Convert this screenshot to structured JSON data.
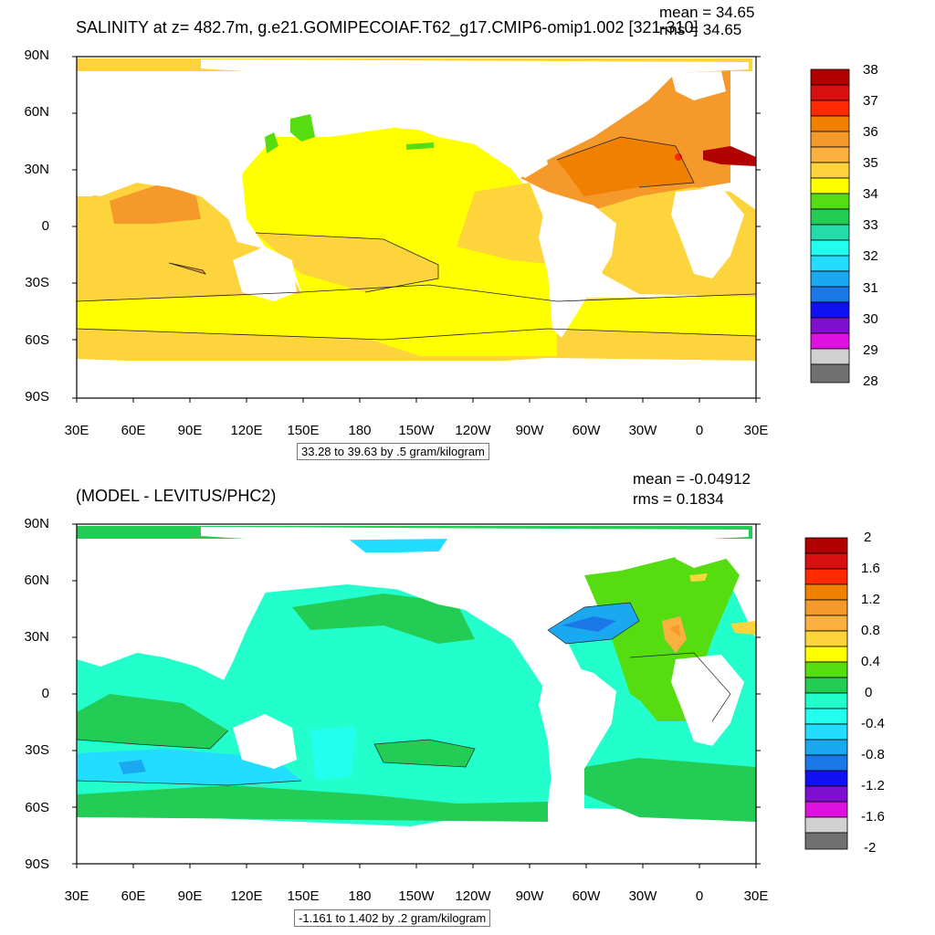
{
  "panels": [
    {
      "id": "top",
      "title": "SALINITY at z= 482.7m, g.e21.GOMIPECOIAF.T62_g17.CMIP6-omip1.002 [321-310]",
      "mean_text": "mean = 34.65",
      "rms_text": "rms = 34.65",
      "info_text": "33.28 to 39.63 by .5 gram/kilogram",
      "colorbar_labels": [
        "38",
        "37",
        "36",
        "35",
        "34",
        "33",
        "32",
        "31",
        "30",
        "29",
        "28"
      ],
      "colorbar_colors": [
        "#b00000",
        "#d81010",
        "#ff2a00",
        "#f08000",
        "#f59a2a",
        "#fbb040",
        "#fdd43c",
        "#ffff00",
        "#55dd11",
        "#22cc55",
        "#22ddaa",
        "#22ffee",
        "#22ddff",
        "#1aa8f0",
        "#1a78e8",
        "#1010f0",
        "#8010d0",
        "#e010e0",
        "#d0d0d0",
        "#707070"
      ],
      "ocean_colors": {
        "land": "#ffffff",
        "main": "#fdd43c",
        "pacific": "#ffff00",
        "atlantic": "#f59a2a",
        "hot": "#b00000"
      }
    },
    {
      "id": "bottom",
      "title": "(MODEL - LEVITUS/PHC2)",
      "mean_text": "mean = -0.04912",
      "rms_text": "rms = 0.1834",
      "info_text": "-1.161 to 1.402 by .2 gram/kilogram",
      "colorbar_labels": [
        "2",
        "1.6",
        "1.2",
        "0.8",
        "0.4",
        "0",
        "-0.4",
        "-0.8",
        "-1.2",
        "-1.6",
        "-2"
      ],
      "colorbar_colors": [
        "#b00000",
        "#d81010",
        "#ff2a00",
        "#f08000",
        "#f59a2a",
        "#fbb040",
        "#fdd43c",
        "#ffff00",
        "#55dd11",
        "#22cc55",
        "#22ffcc",
        "#22ffee",
        "#22ddff",
        "#1aa8f0",
        "#1a78e8",
        "#1010f0",
        "#8010d0",
        "#e010e0",
        "#d0d0d0",
        "#707070"
      ],
      "ocean_colors": {
        "land": "#ffffff",
        "main": "#22ffcc",
        "green": "#22cc55",
        "lime": "#55dd11",
        "blue": "#1aa8f0"
      }
    }
  ],
  "axes": {
    "lat_labels": [
      "90N",
      "60N",
      "30N",
      "0",
      "30S",
      "60S",
      "90S"
    ],
    "lon_labels": [
      "30E",
      "60E",
      "90E",
      "120E",
      "150E",
      "180",
      "150W",
      "120W",
      "90W",
      "60W",
      "30W",
      "0",
      "30E"
    ]
  }
}
